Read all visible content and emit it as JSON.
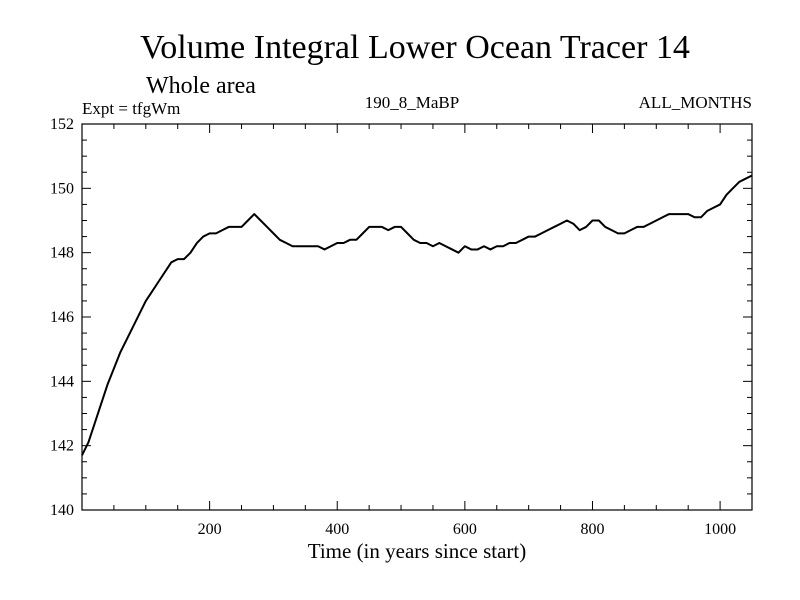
{
  "chart_data": {
    "type": "line",
    "title": "Volume Integral Lower Ocean Tracer 14",
    "subtitle": "Whole area",
    "expt_label": "Expt = tfgWm",
    "center_label": "190_8_MaBP",
    "right_label": "ALL_MONTHS",
    "xlabel": "Time (in years since start)",
    "ylabel": "",
    "xlim": [
      0,
      1050
    ],
    "ylim": [
      140,
      152
    ],
    "xticks": [
      200,
      400,
      600,
      800,
      1000
    ],
    "yticks": [
      140,
      142,
      144,
      146,
      148,
      150,
      152
    ],
    "line_color": "#000000",
    "series": [
      {
        "name": "Volume Integral Lower Ocean Tracer 14",
        "x": [
          0,
          10,
          20,
          30,
          40,
          50,
          60,
          70,
          80,
          90,
          100,
          110,
          120,
          130,
          140,
          150,
          160,
          170,
          180,
          190,
          200,
          210,
          220,
          230,
          240,
          250,
          260,
          270,
          280,
          290,
          300,
          310,
          320,
          330,
          340,
          350,
          360,
          370,
          380,
          390,
          400,
          410,
          420,
          430,
          440,
          450,
          460,
          470,
          480,
          490,
          500,
          510,
          520,
          530,
          540,
          550,
          560,
          570,
          580,
          590,
          600,
          610,
          620,
          630,
          640,
          650,
          660,
          670,
          680,
          690,
          700,
          710,
          720,
          730,
          740,
          750,
          760,
          770,
          780,
          790,
          800,
          810,
          820,
          830,
          840,
          850,
          860,
          870,
          880,
          890,
          900,
          910,
          920,
          930,
          940,
          950,
          960,
          970,
          980,
          990,
          1000,
          1010,
          1020,
          1030,
          1040,
          1050
        ],
        "values": [
          141.7,
          142.1,
          142.7,
          143.3,
          143.9,
          144.4,
          144.9,
          145.3,
          145.7,
          146.1,
          146.5,
          146.8,
          147.1,
          147.4,
          147.7,
          147.8,
          147.8,
          148.0,
          148.3,
          148.5,
          148.6,
          148.6,
          148.7,
          148.8,
          148.8,
          148.8,
          149.0,
          149.2,
          149.0,
          148.8,
          148.6,
          148.4,
          148.3,
          148.2,
          148.2,
          148.2,
          148.2,
          148.2,
          148.1,
          148.2,
          148.3,
          148.3,
          148.4,
          148.4,
          148.6,
          148.8,
          148.8,
          148.8,
          148.7,
          148.8,
          148.8,
          148.6,
          148.4,
          148.3,
          148.3,
          148.2,
          148.3,
          148.2,
          148.1,
          148.0,
          148.2,
          148.1,
          148.1,
          148.2,
          148.1,
          148.2,
          148.2,
          148.3,
          148.3,
          148.4,
          148.5,
          148.5,
          148.6,
          148.7,
          148.8,
          148.9,
          149.0,
          148.9,
          148.7,
          148.8,
          149.0,
          149.0,
          148.8,
          148.7,
          148.6,
          148.6,
          148.7,
          148.8,
          148.8,
          148.9,
          149.0,
          149.1,
          149.2,
          149.2,
          149.2,
          149.2,
          149.1,
          149.1,
          149.3,
          149.4,
          149.5,
          149.8,
          150.0,
          150.2,
          150.3,
          150.4
        ]
      }
    ]
  }
}
